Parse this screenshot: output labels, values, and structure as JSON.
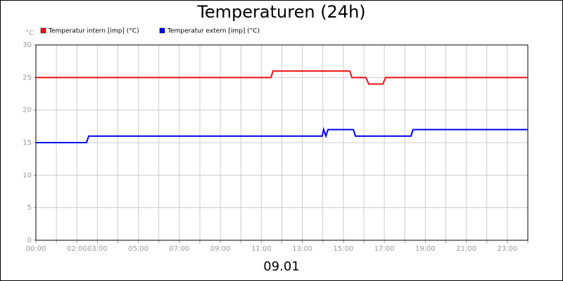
{
  "chart_data": {
    "type": "line",
    "title": "Temperaturen (24h)",
    "ylabel": "°C",
    "xlabel": "09.01",
    "x": [],
    "series": [
      {
        "name": "Temperatur intern [imp] (°C)",
        "color": "#ee1111",
        "x": [
          0,
          11.47,
          11.57,
          15.31,
          15.42,
          16.1,
          16.24,
          16.93,
          17.06,
          24
        ],
        "values": [
          25,
          25,
          26,
          26,
          25,
          25,
          24,
          24,
          25,
          25
        ]
      },
      {
        "name": "Temperatur extern [imp] (°C)",
        "color": "#0000ee",
        "x": [
          0,
          2.47,
          2.58,
          13.97,
          14.04,
          14.15,
          14.25,
          15.49,
          15.59,
          18.3,
          18.4,
          24
        ],
        "values": [
          15,
          15,
          16,
          16,
          17,
          16,
          17,
          17,
          16,
          16,
          17,
          17
        ]
      }
    ],
    "xlim": [
      0,
      24
    ],
    "xticks": [
      {
        "value": 0,
        "label": "00:00"
      },
      {
        "value": 2,
        "label": "02:00"
      },
      {
        "value": 3,
        "label": "03:00"
      },
      {
        "value": 5,
        "label": "05:00"
      },
      {
        "value": 7,
        "label": "07:00"
      },
      {
        "value": 9,
        "label": "09:00"
      },
      {
        "value": 11,
        "label": "11:00"
      },
      {
        "value": 13,
        "label": "13:00"
      },
      {
        "value": 15,
        "label": "15:00"
      },
      {
        "value": 17,
        "label": "17:00"
      },
      {
        "value": 19,
        "label": "19:00"
      },
      {
        "value": 21,
        "label": "21:00"
      },
      {
        "value": 23,
        "label": "23:00"
      }
    ],
    "xminorticks": [
      1,
      4,
      6,
      8,
      10,
      12,
      14,
      16,
      18,
      20,
      22,
      24
    ],
    "ylim": [
      0,
      30
    ],
    "yticks": [
      0,
      5,
      10,
      15,
      20,
      25,
      30
    ],
    "grid": true
  }
}
